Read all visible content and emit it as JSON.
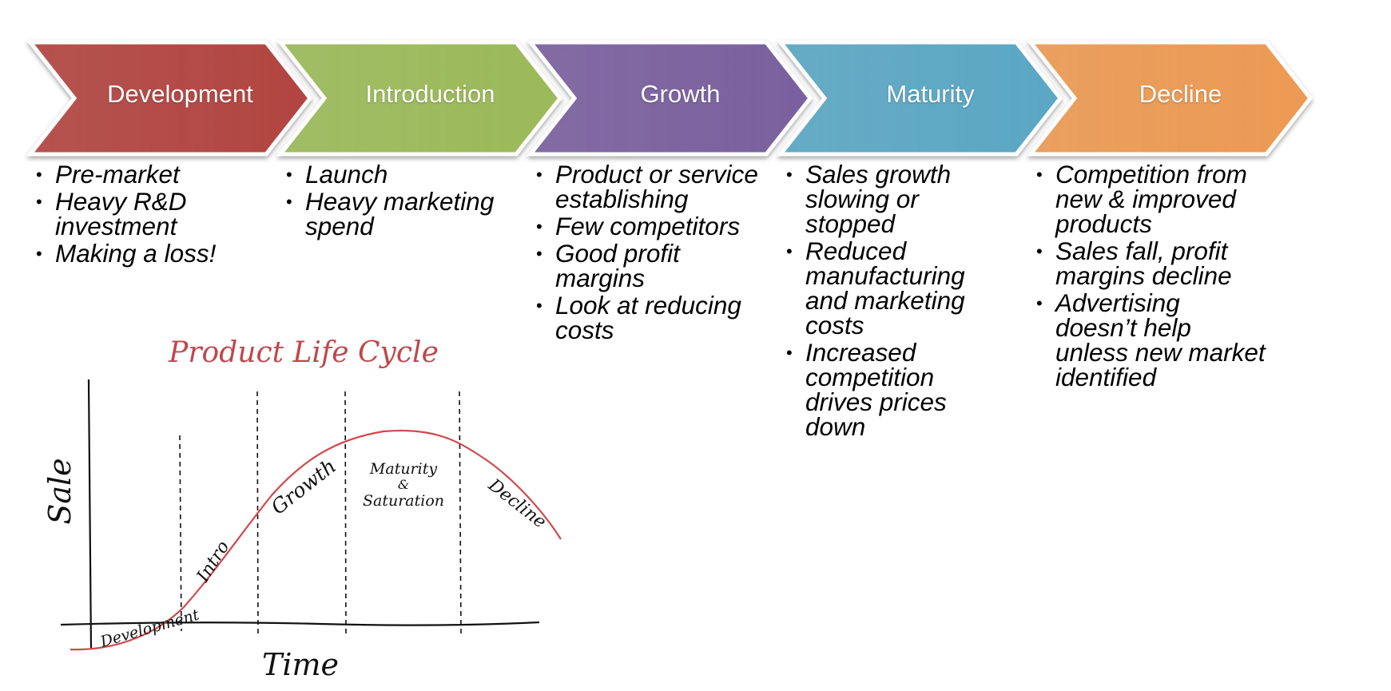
{
  "stages": [
    {
      "label": "Development",
      "color": "#b24541",
      "bullets": [
        "Pre-market",
        "Heavy R&D investment",
        "Making a loss!"
      ]
    },
    {
      "label": "Introduction",
      "color": "#9bba59",
      "bullets": [
        "Launch",
        "Heavy marketing spend"
      ]
    },
    {
      "label": "Growth",
      "color": "#7a609e",
      "bullets": [
        "Product or service establishing",
        "Few competitors",
        "Good profit margins",
        "Look at reducing costs"
      ]
    },
    {
      "label": "Maturity",
      "color": "#5ba7c4",
      "bullets": [
        "Sales growth slowing or stopped",
        "Reduced manufacturing and marketing costs",
        "Increased competition drives prices down"
      ]
    },
    {
      "label": "Decline",
      "color": "#ec9a53",
      "bullets": [
        "Competition from new & improved products",
        "Sales fall, profit margins decline",
        "Advertising doesn’t help unless new market identified"
      ]
    }
  ],
  "sketch": {
    "title": "Product Life Cycle",
    "title_color": "#c0474b",
    "y_axis_label": "Sale",
    "x_axis_label": "Time",
    "phase_labels": {
      "development": "Development",
      "intro": "Intro",
      "growth": "Growth",
      "maturity_line1": "Maturity",
      "maturity_line2": "&",
      "maturity_line3": "Saturation",
      "decline": "Decline"
    },
    "curve_color": "#d0494d"
  }
}
